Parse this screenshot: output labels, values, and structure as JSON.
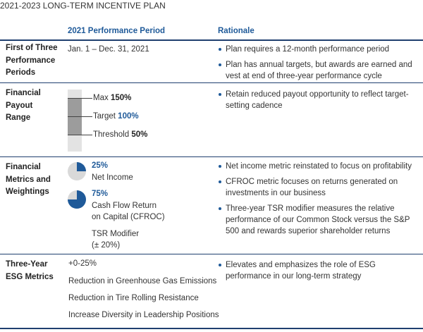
{
  "title": "2021-2023 LONG-TERM INCENTIVE PLAN",
  "headers": {
    "col2": "2021 Performance Period",
    "col3": "Rationale"
  },
  "rows": {
    "periods": {
      "label_lines": [
        "First of Three",
        "Performance",
        "Periods"
      ],
      "value": "Jan. 1 – Dec. 31, 2021",
      "bullets": [
        "Plan requires a 12-month performance period",
        "Plan has annual targets, but awards are earned and vest at end of three-year performance cycle"
      ]
    },
    "payout": {
      "label_lines": [
        "Financial",
        "Payout",
        "Range"
      ],
      "levels": [
        {
          "name": "Max",
          "value": "150%"
        },
        {
          "name": "Target",
          "value": "100%"
        },
        {
          "name": "Threshold",
          "value": "50%"
        }
      ],
      "bullets": [
        "Retain reduced payout opportunity to reflect target-setting cadence"
      ]
    },
    "metrics": {
      "label_lines": [
        "Financial",
        "Metrics and",
        "Weightings"
      ],
      "items": [
        {
          "weight": "25%",
          "weight_value": 25,
          "name_lines": [
            "Net Income"
          ]
        },
        {
          "weight": "75%",
          "weight_value": 75,
          "name_lines": [
            "Cash Flow Return",
            "on Capital (CFROC)"
          ]
        }
      ],
      "modifier_lines": [
        "TSR Modifier",
        "(± 20%)"
      ],
      "bullets": [
        "Net income metric reinstated to focus on profitability",
        "CFROC metric focuses on returns generated on investments in our business",
        "Three-year TSR modifier measures the relative performance of our Common Stock versus the S&P 500 and rewards superior shareholder returns"
      ]
    },
    "esg": {
      "label_lines": [
        "Three-Year",
        "ESG Metrics"
      ],
      "items": [
        "+0-25%",
        "Reduction in Greenhouse Gas Emissions",
        "Reduction in Tire Rolling Resistance",
        "Increase Diversity in Leadership Positions"
      ],
      "bullets": [
        "Elevates and emphasizes the role of ESG performance in our long-term strategy"
      ]
    }
  },
  "colors": {
    "accent": "#1f5a99",
    "rule": "#1f3f6f",
    "pie_bg": "#d9d9d9"
  }
}
